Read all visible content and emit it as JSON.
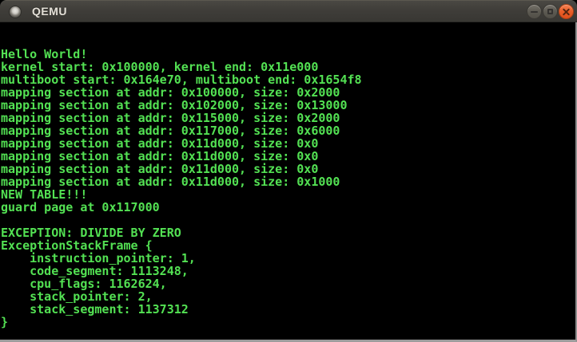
{
  "window": {
    "title": "QEMU",
    "titlebar_color": "#3c3b37",
    "controls": {
      "minimize_label": "minimize",
      "maximize_label": "maximize",
      "close_label": "close",
      "close_color": "#ea5e27",
      "button_gray": "#5e5b53"
    }
  },
  "terminal": {
    "foreground": "#53e153",
    "background": "#000000",
    "lines": [
      "",
      "",
      "Hello World!",
      "kernel start: 0x100000, kernel end: 0x11e000",
      "multiboot start: 0x164e70, multiboot end: 0x1654f8",
      "mapping section at addr: 0x100000, size: 0x2000",
      "mapping section at addr: 0x102000, size: 0x13000",
      "mapping section at addr: 0x115000, size: 0x2000",
      "mapping section at addr: 0x117000, size: 0x6000",
      "mapping section at addr: 0x11d000, size: 0x0",
      "mapping section at addr: 0x11d000, size: 0x0",
      "mapping section at addr: 0x11d000, size: 0x0",
      "mapping section at addr: 0x11d000, size: 0x1000",
      "NEW TABLE!!!",
      "guard page at 0x117000",
      "",
      "EXCEPTION: DIVIDE BY ZERO",
      "ExceptionStackFrame {",
      "    instruction_pointer: 1,",
      "    code_segment: 1113248,",
      "    cpu_flags: 1162624,",
      "    stack_pointer: 2,",
      "    stack_segment: 1137312",
      "}"
    ]
  }
}
